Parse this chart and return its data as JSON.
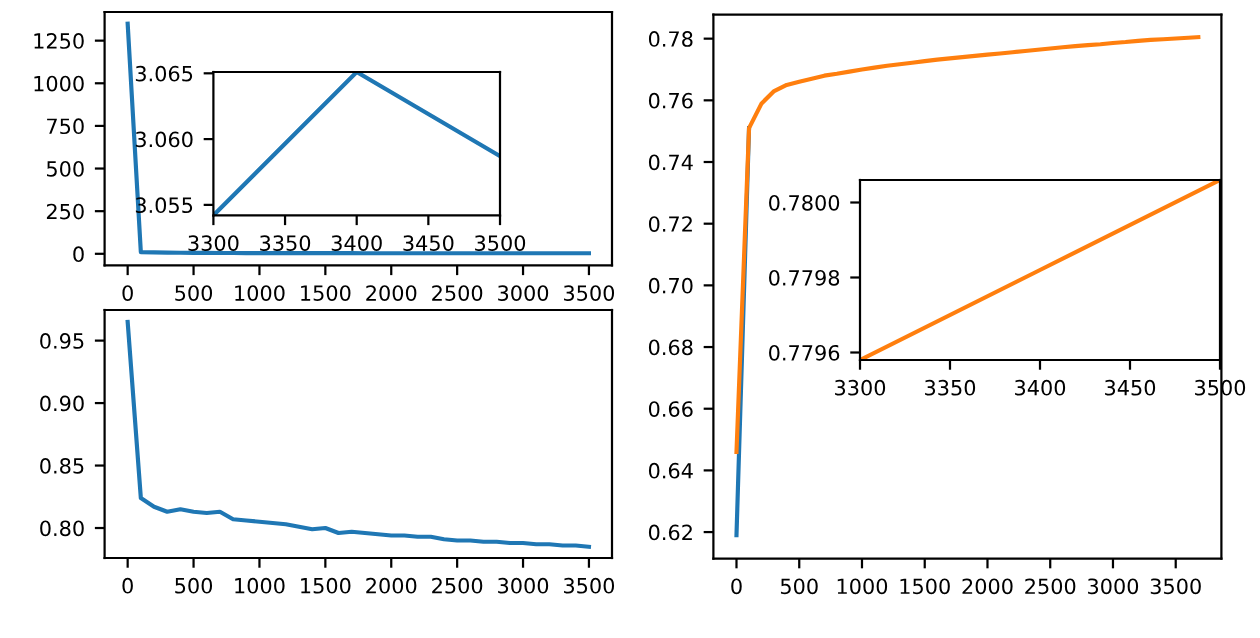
{
  "chart_data": [
    {
      "type": "line",
      "x": [
        0,
        100,
        200,
        300,
        400,
        500,
        600,
        700,
        800,
        900,
        1000,
        1100,
        1200,
        1300,
        1400,
        1500,
        1600,
        1700,
        1800,
        1900,
        2000,
        2100,
        2200,
        2300,
        2400,
        2500,
        2600,
        2700,
        2800,
        2900,
        3000,
        3100,
        3200,
        3300,
        3400,
        3500
      ],
      "series": [
        {
          "color": "#1f77b4",
          "values": [
            1350,
            10,
            8,
            7,
            6,
            5.5,
            5,
            4.7,
            4.5,
            4.3,
            4.1,
            4,
            3.9,
            3.8,
            3.7,
            3.6,
            3.55,
            3.5,
            3.45,
            3.4,
            3.35,
            3.3,
            3.27,
            3.24,
            3.21,
            3.18,
            3.15,
            3.12,
            3.1,
            3.08,
            3.07,
            3.06,
            3.058,
            3.0542,
            3.0651,
            3.0587
          ]
        }
      ],
      "xlim": [
        -175,
        3675
      ],
      "ylim": [
        -68,
        1418
      ],
      "xticks": [
        0,
        500,
        1000,
        1500,
        2000,
        2500,
        3000,
        3500
      ],
      "yticks": [
        0,
        250,
        500,
        750,
        1000,
        1250
      ]
    },
    {
      "type": "line",
      "x": [
        3300,
        3400,
        3500
      ],
      "series": [
        {
          "color": "#1f77b4",
          "values": [
            3.0542,
            3.0651,
            3.0587
          ]
        }
      ],
      "xlim": [
        3300,
        3500
      ],
      "ylim": [
        3.0542,
        3.0651
      ],
      "xticks": [
        3300,
        3350,
        3400,
        3450,
        3500
      ],
      "yticks": [
        3.055,
        {
          "value": 3.06,
          "label": "3.060"
        },
        3.065
      ]
    },
    {
      "type": "line",
      "x": [
        0,
        100,
        200,
        300,
        400,
        500,
        600,
        700,
        800,
        900,
        1000,
        1100,
        1200,
        1300,
        1400,
        1500,
        1600,
        1700,
        1800,
        1900,
        2000,
        2100,
        2200,
        2300,
        2400,
        2500,
        2600,
        2700,
        2800,
        2900,
        3000,
        3100,
        3200,
        3300,
        3400,
        3600,
        3680
      ],
      "series": [
        {
          "color": "#1f77b4",
          "values": [
            0.619,
            0.751,
            null,
            null,
            null,
            null,
            null,
            null,
            null,
            null,
            null,
            null,
            null,
            null,
            null,
            null,
            null,
            null,
            null,
            null,
            null,
            null,
            null,
            null,
            null,
            null,
            null,
            null,
            null,
            null,
            null,
            null,
            null,
            null,
            null,
            null,
            null
          ]
        },
        {
          "color": "#ff7f0e",
          "values": [
            0.646,
            0.751,
            0.759,
            0.763,
            0.765,
            0.766,
            0.767,
            0.768,
            0.7686,
            0.7693,
            0.77,
            0.7706,
            0.7712,
            0.7717,
            0.7722,
            0.7727,
            0.7732,
            0.7736,
            0.774,
            0.7744,
            0.7748,
            0.7752,
            0.7756,
            0.776,
            0.7764,
            0.7768,
            0.7772,
            0.7776,
            0.7779,
            0.7782,
            0.7786,
            0.7789,
            0.7793,
            0.77958,
            0.77982,
            0.7803,
            0.7805
          ]
        }
      ],
      "xlim": [
        -184,
        3864
      ],
      "ylim": [
        0.6114,
        0.7878
      ],
      "xticks": [
        0,
        500,
        1000,
        1500,
        2000,
        2500,
        3000,
        3500
      ],
      "yticks": [
        0.62,
        0.64,
        0.66,
        0.68,
        {
          "value": 0.7,
          "label": "0.70"
        },
        0.72,
        0.74,
        0.76,
        0.78
      ]
    },
    {
      "type": "line",
      "x": [
        3300,
        3400,
        3500
      ],
      "series": [
        {
          "color": "#ff7f0e",
          "values": [
            0.77958,
            0.77982,
            0.78006
          ]
        }
      ],
      "xlim": [
        3300,
        3500
      ],
      "ylim": [
        0.77958,
        0.78006
      ],
      "xticks": [
        3300,
        3350,
        3400,
        3450,
        3500
      ],
      "yticks": [
        0.7796,
        0.7798,
        {
          "value": 0.78,
          "label": "0.7800"
        }
      ]
    },
    {
      "type": "line",
      "x": [
        0,
        100,
        200,
        300,
        400,
        500,
        600,
        700,
        800,
        900,
        1000,
        1100,
        1200,
        1300,
        1400,
        1500,
        1600,
        1700,
        1800,
        1900,
        2000,
        2100,
        2200,
        2300,
        2400,
        2500,
        2600,
        2700,
        2800,
        2900,
        3000,
        3100,
        3200,
        3300,
        3400,
        3500
      ],
      "series": [
        {
          "color": "#1f77b4",
          "values": [
            0.965,
            0.824,
            0.817,
            0.813,
            0.815,
            0.813,
            0.812,
            0.813,
            0.807,
            0.806,
            0.805,
            0.804,
            0.803,
            0.801,
            0.799,
            0.8,
            0.796,
            0.797,
            0.796,
            0.795,
            0.794,
            0.794,
            0.793,
            0.793,
            0.791,
            0.79,
            0.79,
            0.789,
            0.789,
            0.788,
            0.788,
            0.787,
            0.787,
            0.786,
            0.786,
            0.785
          ]
        }
      ],
      "xlim": [
        -175,
        3675
      ],
      "ylim": [
        0.776,
        0.9745
      ],
      "xticks": [
        0,
        500,
        1000,
        1500,
        2000,
        2500,
        3000,
        3500
      ],
      "yticks": [
        {
          "value": 0.8,
          "label": "0.80"
        },
        0.85,
        {
          "value": 0.9,
          "label": "0.90"
        },
        0.95
      ]
    }
  ]
}
